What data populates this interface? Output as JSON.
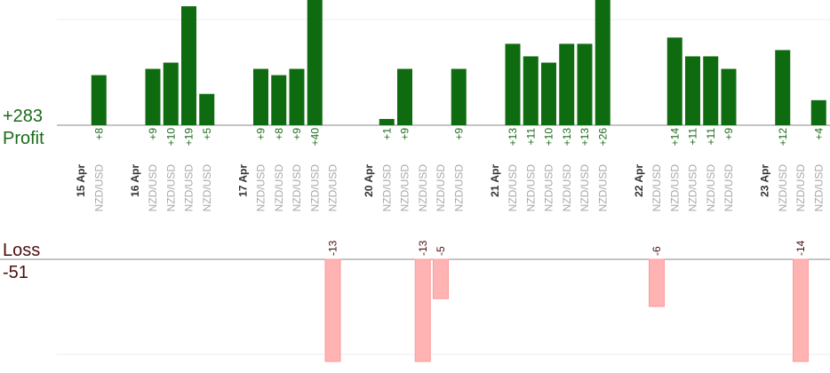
{
  "summary": {
    "profit_total": "+283",
    "profit_label": "Profit",
    "loss_label": "Loss",
    "loss_total": "-51"
  },
  "colors": {
    "profit_bar": "#0f6b0f",
    "profit_text": "#1a6b1a",
    "loss_bar": "#ffb3b3",
    "loss_text": "#4a0f0f",
    "pair_text": "#a8a8a8",
    "date_text": "#333333"
  },
  "chart_data": {
    "type": "bar",
    "profit_scale_max": 20,
    "loss_scale_max": 13,
    "columns": [
      {
        "kind": "date",
        "label": "15 Apr"
      },
      {
        "kind": "trade",
        "pair": "NZD/USD",
        "value": 8,
        "label": "+8"
      },
      {
        "kind": "gap"
      },
      {
        "kind": "date",
        "label": "16 Apr"
      },
      {
        "kind": "trade",
        "pair": "NZD/USD",
        "value": 9,
        "label": "+9"
      },
      {
        "kind": "trade",
        "pair": "NZD/USD",
        "value": 10,
        "label": "+10"
      },
      {
        "kind": "trade",
        "pair": "NZD/USD",
        "value": 19,
        "label": "+19"
      },
      {
        "kind": "trade",
        "pair": "NZD/USD",
        "value": 5,
        "label": "+5"
      },
      {
        "kind": "gap"
      },
      {
        "kind": "date",
        "label": "17 Apr"
      },
      {
        "kind": "trade",
        "pair": "NZD/USD",
        "value": 9,
        "label": "+9"
      },
      {
        "kind": "trade",
        "pair": "NZD/USD",
        "value": 8,
        "label": "+8"
      },
      {
        "kind": "trade",
        "pair": "NZD/USD",
        "value": 9,
        "label": "+9"
      },
      {
        "kind": "trade",
        "pair": "NZD/USD",
        "value": 40,
        "label": "+40"
      },
      {
        "kind": "trade",
        "pair": "NZD/USD",
        "value": -13,
        "label": "-13"
      },
      {
        "kind": "gap"
      },
      {
        "kind": "date",
        "label": "20 Apr"
      },
      {
        "kind": "trade",
        "pair": "NZD/USD",
        "value": 1,
        "label": "+1"
      },
      {
        "kind": "trade",
        "pair": "NZD/USD",
        "value": 9,
        "label": "+9"
      },
      {
        "kind": "trade",
        "pair": "NZD/USD",
        "value": -13,
        "label": "-13"
      },
      {
        "kind": "trade",
        "pair": "NZD/USD",
        "value": -5,
        "label": "-5"
      },
      {
        "kind": "trade",
        "pair": "NZD/USD",
        "value": 9,
        "label": "+9"
      },
      {
        "kind": "gap"
      },
      {
        "kind": "date",
        "label": "21 Apr"
      },
      {
        "kind": "trade",
        "pair": "NZD/USD",
        "value": 13,
        "label": "+13"
      },
      {
        "kind": "trade",
        "pair": "NZD/USD",
        "value": 11,
        "label": "+11"
      },
      {
        "kind": "trade",
        "pair": "NZD/USD",
        "value": 10,
        "label": "+10"
      },
      {
        "kind": "trade",
        "pair": "NZD/USD",
        "value": 13,
        "label": "+13"
      },
      {
        "kind": "trade",
        "pair": "NZD/USD",
        "value": 13,
        "label": "+13"
      },
      {
        "kind": "trade",
        "pair": "NZD/USD",
        "value": 26,
        "label": "+26"
      },
      {
        "kind": "gap"
      },
      {
        "kind": "date",
        "label": "22 Apr"
      },
      {
        "kind": "trade",
        "pair": "NZD/USD",
        "value": -6,
        "label": "-6"
      },
      {
        "kind": "trade",
        "pair": "NZD/USD",
        "value": 14,
        "label": "+14"
      },
      {
        "kind": "trade",
        "pair": "NZD/USD",
        "value": 11,
        "label": "+11"
      },
      {
        "kind": "trade",
        "pair": "NZD/USD",
        "value": 11,
        "label": "+11"
      },
      {
        "kind": "trade",
        "pair": "NZD/USD",
        "value": 9,
        "label": "+9"
      },
      {
        "kind": "gap"
      },
      {
        "kind": "date",
        "label": "23 Apr"
      },
      {
        "kind": "trade",
        "pair": "NZD/USD",
        "value": 12,
        "label": "+12"
      },
      {
        "kind": "trade",
        "pair": "NZD/USD",
        "value": -14,
        "label": "-14"
      },
      {
        "kind": "trade",
        "pair": "NZD/USD",
        "value": 4,
        "label": "+4"
      }
    ]
  }
}
